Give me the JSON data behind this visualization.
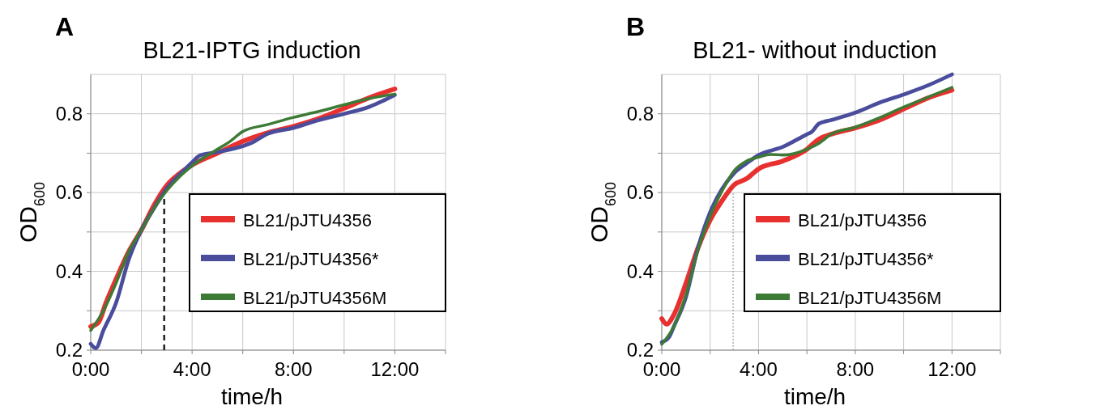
{
  "chart_data": [
    {
      "type": "line",
      "title": "BL21-IPTG induction",
      "xlabel": "time/h",
      "ylabel": "OD$_{600}$",
      "annotations": [
        "A"
      ],
      "xlim": [
        0,
        14
      ],
      "ylim": [
        0.2,
        0.9
      ],
      "xticks": [
        {
          "value": 0,
          "label": "0:00"
        },
        {
          "value": 2,
          "label": null
        },
        {
          "value": 4,
          "label": "4:00"
        },
        {
          "value": 6,
          "label": null
        },
        {
          "value": 8,
          "label": "8:00"
        },
        {
          "value": 10,
          "label": null
        },
        {
          "value": 12,
          "label": "12:00"
        },
        {
          "value": 14,
          "label": null
        }
      ],
      "yticks": [
        0.2,
        {
          "value": 0.3,
          "label": null
        },
        0.4,
        {
          "value": 0.5,
          "label": null
        },
        0.6,
        {
          "value": 0.7,
          "label": null
        },
        0.8
      ],
      "grid": true,
      "legend": "right",
      "line_style": "solid",
      "ref_lines": [
        {
          "axis": "x",
          "value": 2.9,
          "line_style": "dashed",
          "color": "#222222"
        }
      ],
      "series": [
        {
          "name": "BL21/pJTU4356",
          "color": "#e8312f",
          "x": [
            0,
            0.3,
            0.6,
            1,
            1.5,
            2,
            2.5,
            3,
            3.5,
            4,
            5,
            6,
            7,
            8,
            9,
            10,
            11,
            12
          ],
          "values": [
            0.26,
            0.27,
            0.32,
            0.38,
            0.45,
            0.505,
            0.568,
            0.618,
            0.648,
            0.67,
            0.7,
            0.73,
            0.752,
            0.768,
            0.788,
            0.814,
            0.841,
            0.863
          ]
        },
        {
          "name": "BL21/pJTU4356*",
          "color": "#4a4d9c",
          "x": [
            0,
            0.2,
            0.5,
            1,
            1.5,
            2,
            2.5,
            3,
            3.5,
            4,
            4.3,
            5,
            6,
            6.3,
            7,
            8,
            9,
            10,
            11,
            11.5,
            12
          ],
          "values": [
            0.216,
            0.205,
            0.25,
            0.32,
            0.43,
            0.505,
            0.56,
            0.61,
            0.645,
            0.677,
            0.694,
            0.703,
            0.718,
            0.725,
            0.75,
            0.764,
            0.784,
            0.8,
            0.818,
            0.832,
            0.848
          ]
        },
        {
          "name": "BL21/pJTU4356M",
          "color": "#3d7a35",
          "x": [
            0,
            0.5,
            1,
            1.5,
            2,
            2.5,
            3,
            3.5,
            4,
            5,
            5.5,
            6,
            7,
            8,
            9,
            10,
            11,
            12
          ],
          "values": [
            0.25,
            0.3,
            0.37,
            0.45,
            0.505,
            0.56,
            0.605,
            0.64,
            0.668,
            0.71,
            0.73,
            0.755,
            0.773,
            0.791,
            0.806,
            0.823,
            0.839,
            0.85
          ]
        }
      ]
    },
    {
      "type": "line",
      "title": "BL21- without induction",
      "xlabel": "time/h",
      "ylabel": "OD$_{600}$",
      "annotations": [
        "B"
      ],
      "xlim": [
        0,
        14
      ],
      "ylim": [
        0.2,
        0.9
      ],
      "xticks": [
        {
          "value": 0,
          "label": "0:00"
        },
        {
          "value": 2,
          "label": null
        },
        {
          "value": 4,
          "label": "4:00"
        },
        {
          "value": 6,
          "label": null
        },
        {
          "value": 8,
          "label": "8:00"
        },
        {
          "value": 10,
          "label": null
        },
        {
          "value": 12,
          "label": "12:00"
        },
        {
          "value": 14,
          "label": null
        }
      ],
      "yticks": [
        0.2,
        {
          "value": 0.3,
          "label": null
        },
        0.4,
        {
          "value": 0.5,
          "label": null
        },
        0.6,
        {
          "value": 0.7,
          "label": null
        },
        0.8
      ],
      "grid": true,
      "legend": "right",
      "line_style": "solid",
      "ref_lines": [
        {
          "axis": "x",
          "value": 2.95,
          "line_style": "dotted",
          "color": "#888888"
        }
      ],
      "series": [
        {
          "name": "BL21/pJTU4356",
          "color": "#e8312f",
          "x": [
            0,
            0.2,
            0.5,
            1,
            1.5,
            2,
            2.5,
            3,
            3.5,
            4,
            5,
            6,
            6.5,
            7,
            8,
            9,
            10,
            11,
            12
          ],
          "values": [
            0.28,
            0.266,
            0.29,
            0.37,
            0.46,
            0.53,
            0.58,
            0.62,
            0.635,
            0.66,
            0.68,
            0.71,
            0.736,
            0.748,
            0.764,
            0.784,
            0.812,
            0.84,
            0.86
          ]
        },
        {
          "name": "BL21/pJTU4356*",
          "color": "#4a4d9c",
          "x": [
            0,
            0.3,
            0.5,
            1,
            1.5,
            2,
            2.5,
            3,
            3.5,
            4,
            5,
            6,
            6.2,
            6.5,
            7,
            8,
            9,
            10,
            11,
            12
          ],
          "values": [
            0.22,
            0.233,
            0.26,
            0.335,
            0.46,
            0.55,
            0.61,
            0.65,
            0.674,
            0.695,
            0.716,
            0.748,
            0.754,
            0.775,
            0.784,
            0.803,
            0.828,
            0.849,
            0.872,
            0.9
          ]
        },
        {
          "name": "BL21/pJTU4356M",
          "color": "#3d7a35",
          "x": [
            0,
            0.5,
            1,
            1.5,
            2,
            2.5,
            3,
            3.5,
            4,
            4.5,
            5,
            6,
            6.5,
            7,
            8,
            9,
            10,
            11,
            12
          ],
          "values": [
            0.215,
            0.26,
            0.34,
            0.455,
            0.54,
            0.605,
            0.656,
            0.68,
            0.69,
            0.697,
            0.695,
            0.71,
            0.725,
            0.748,
            0.766,
            0.79,
            0.817,
            0.842,
            0.867
          ]
        }
      ]
    }
  ]
}
